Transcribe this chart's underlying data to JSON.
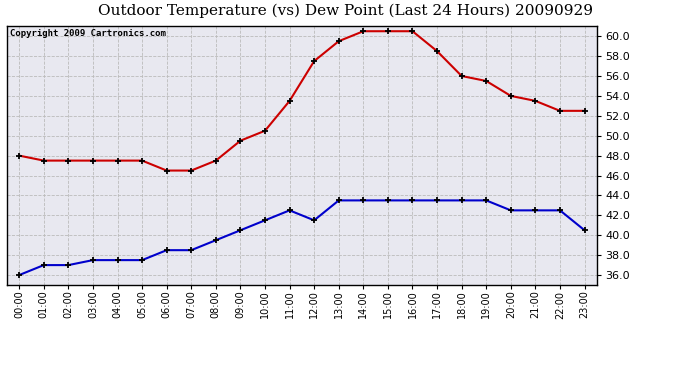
{
  "title": "Outdoor Temperature (vs) Dew Point (Last 24 Hours) 20090929",
  "copyright": "Copyright 2009 Cartronics.com",
  "hours": [
    "00:00",
    "01:00",
    "02:00",
    "03:00",
    "04:00",
    "05:00",
    "06:00",
    "07:00",
    "08:00",
    "09:00",
    "10:00",
    "11:00",
    "12:00",
    "13:00",
    "14:00",
    "15:00",
    "16:00",
    "17:00",
    "18:00",
    "19:00",
    "20:00",
    "21:00",
    "22:00",
    "23:00"
  ],
  "temp": [
    48.0,
    47.5,
    47.5,
    47.5,
    47.5,
    47.5,
    46.5,
    46.5,
    47.5,
    49.5,
    50.5,
    53.5,
    57.5,
    59.5,
    60.5,
    60.5,
    60.5,
    58.5,
    56.0,
    55.5,
    54.0,
    53.5,
    52.5,
    52.5
  ],
  "dewpoint": [
    36.0,
    37.0,
    37.0,
    37.5,
    37.5,
    37.5,
    38.5,
    38.5,
    39.5,
    40.5,
    41.5,
    42.5,
    41.5,
    43.5,
    43.5,
    43.5,
    43.5,
    43.5,
    43.5,
    43.5,
    42.5,
    42.5,
    42.5,
    40.5
  ],
  "temp_color": "#cc0000",
  "dewpoint_color": "#0000cc",
  "bg_color": "#ffffff",
  "plot_bg_color": "#e8e8f0",
  "grid_color": "#bbbbbb",
  "ylim": [
    35.0,
    61.0
  ],
  "yticks": [
    36.0,
    38.0,
    40.0,
    42.0,
    44.0,
    46.0,
    48.0,
    50.0,
    52.0,
    54.0,
    56.0,
    58.0,
    60.0
  ],
  "title_fontsize": 11,
  "copyright_fontsize": 6.5
}
